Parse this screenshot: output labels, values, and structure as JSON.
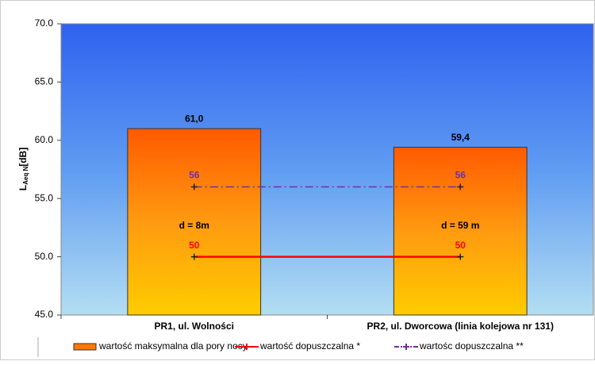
{
  "chart_data": {
    "type": "bar",
    "categories": [
      "PR1, ul. Wolności",
      "PR2, ul. Dworcowa  (linia kolejowa nr 131)"
    ],
    "ylabel_parts": [
      "L",
      "Aeq N",
      "[dB]"
    ],
    "ylim": [
      45,
      70
    ],
    "yticks": [
      {
        "value": 45,
        "label": "45.0"
      },
      {
        "value": 50,
        "label": "50.0"
      },
      {
        "value": 55,
        "label": "55.0"
      },
      {
        "value": 60,
        "label": "60.0"
      },
      {
        "value": 65,
        "label": "65.0"
      },
      {
        "value": 70,
        "label": "70.0"
      }
    ],
    "annotations": [
      "d = 8m",
      "d = 59 m"
    ],
    "series": [
      {
        "name": "wartość maksymalna dla pory nocy",
        "type": "bar",
        "color": "#ff7a00",
        "values": [
          61.0,
          59.4
        ],
        "value_labels": [
          "61,0",
          "59,4"
        ]
      },
      {
        "name": "wartość dopuszczalna *",
        "type": "line",
        "style": "solid",
        "color": "#ff0000",
        "values": [
          50,
          50
        ]
      },
      {
        "name": "wartośc dopuszczalna **",
        "type": "line",
        "style": "dash-dot",
        "color": "#7030a0",
        "values": [
          56,
          56
        ]
      }
    ]
  }
}
